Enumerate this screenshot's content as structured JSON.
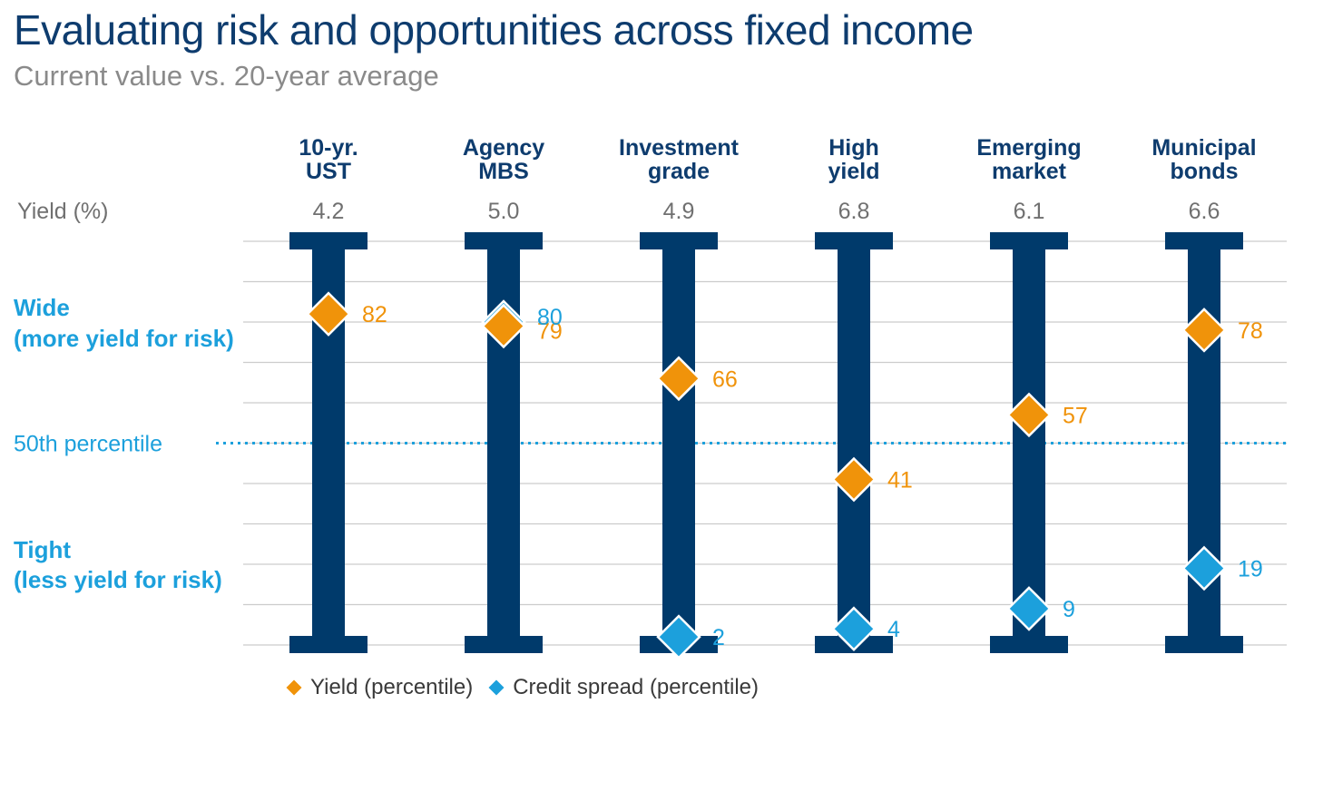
{
  "title": "Evaluating risk and opportunities across fixed income",
  "subtitle": "Current value vs. 20-year average",
  "colors": {
    "bar": "#003a6b",
    "yield": "#f0930a",
    "spread": "#1ca0dc",
    "grid": "#cccccc",
    "yield_row_text": "#707070",
    "category_text": "#0e3c6e"
  },
  "chart_data": {
    "type": "scatter",
    "categories": [
      "10-yr. UST",
      "Agency MBS",
      "Investment grade",
      "High yield",
      "Emerging market",
      "Municipal bonds"
    ],
    "category_lines": [
      [
        "10-yr.",
        "UST"
      ],
      [
        "Agency",
        "MBS"
      ],
      [
        "Investment",
        "grade"
      ],
      [
        "High",
        "yield"
      ],
      [
        "Emerging",
        "market"
      ],
      [
        "Municipal",
        "bonds"
      ]
    ],
    "yield_row_label": "Yield (%)",
    "yields": [
      "4.2",
      "5.0",
      "4.9",
      "6.8",
      "6.1",
      "6.6"
    ],
    "ylim": [
      0,
      100
    ],
    "series": [
      {
        "name": "Yield (percentile)",
        "color_key": "yield",
        "values": [
          82,
          79,
          66,
          41,
          57,
          78
        ]
      },
      {
        "name": "Credit spread (percentile)",
        "color_key": "spread",
        "values": [
          null,
          80,
          2,
          4,
          9,
          19
        ]
      }
    ],
    "reference_line": {
      "value": 50,
      "label": "50th percentile"
    },
    "annotations": {
      "wide": [
        "Wide",
        "(more yield for risk)"
      ],
      "tight": [
        "Tight",
        "(less yield for risk)"
      ]
    },
    "legend": "bottom-left"
  }
}
